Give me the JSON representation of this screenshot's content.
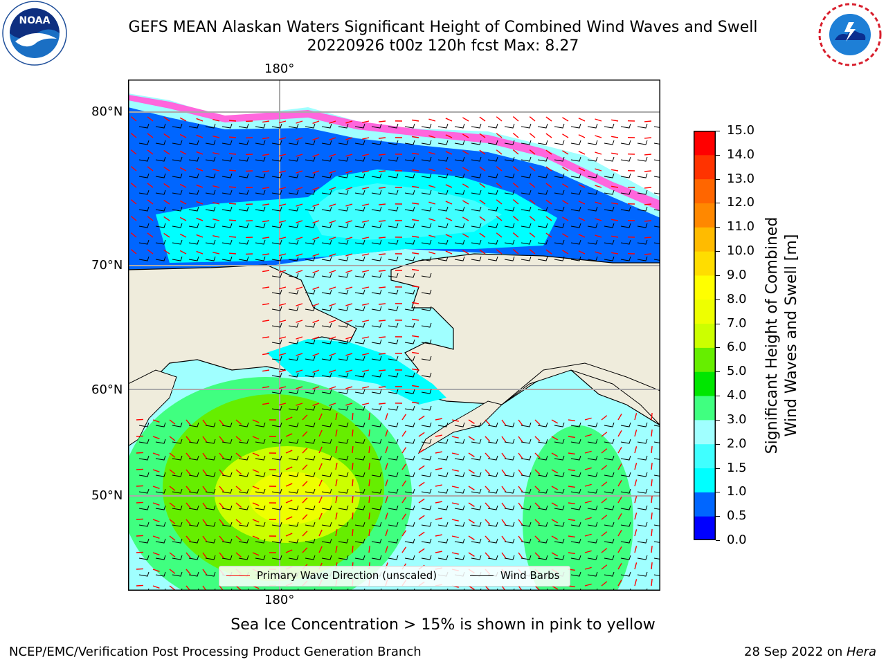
{
  "header": {
    "title_line1": "GEFS MEAN Alaskan Waters Significant Height of Combined Wind Waves and Swell",
    "title_line2": "20220926 t00z 120h fcst   Max: 8.27"
  },
  "logos": {
    "left": {
      "name": "noaa-logo",
      "text": "NOAA",
      "ring_text": "NATIONAL OCEANIC AND ATMOSPHERIC ADMINISTRATION · U.S. DEPARTMENT OF COMMERCE"
    },
    "right": {
      "name": "nws-logo",
      "ring_text": "NATIONAL WEATHER SERVICE"
    }
  },
  "map": {
    "top_lon_label": "180°",
    "bottom_lon_label": "180°",
    "lat_labels": [
      "80°N",
      "70°N",
      "60°N",
      "50°N"
    ],
    "colors": {
      "land": "#efecdc",
      "ice": "#ffffff",
      "gridline": "#aaaaaa",
      "coast": "#000000"
    }
  },
  "legend": {
    "items": [
      {
        "label": "Primary Wave Direction (unscaled)",
        "color": "#ff0000"
      },
      {
        "label": "Wind Barbs",
        "color": "#000000"
      }
    ]
  },
  "colorbar": {
    "label_line1": "Significant Height of Combined",
    "label_line2": "Wind Waves and Swell [m]",
    "ticks": [
      "0.0",
      "0.5",
      "1.0",
      "1.5",
      "2.0",
      "3.0",
      "4.0",
      "5.0",
      "6.0",
      "7.0",
      "8.0",
      "9.0",
      "10.0",
      "11.0",
      "12.0",
      "13.0",
      "14.0",
      "15.0"
    ],
    "colors": [
      "#0000ff",
      "#0066ff",
      "#00ffff",
      "#40ffff",
      "#a0ffff",
      "#40ff80",
      "#00e600",
      "#66ee00",
      "#ccff00",
      "#eeff00",
      "#ffff00",
      "#ffdd00",
      "#ffbb00",
      "#ff8800",
      "#ff6600",
      "#ff3300",
      "#ff0000"
    ]
  },
  "note": "Sea Ice Concentration > 15% is shown in pink to yellow",
  "footer": {
    "left": "NCEP/EMC/Verification Post Processing Product Generation Branch",
    "right_prefix": "28 Sep 2022 on ",
    "right_host": "Hera"
  }
}
